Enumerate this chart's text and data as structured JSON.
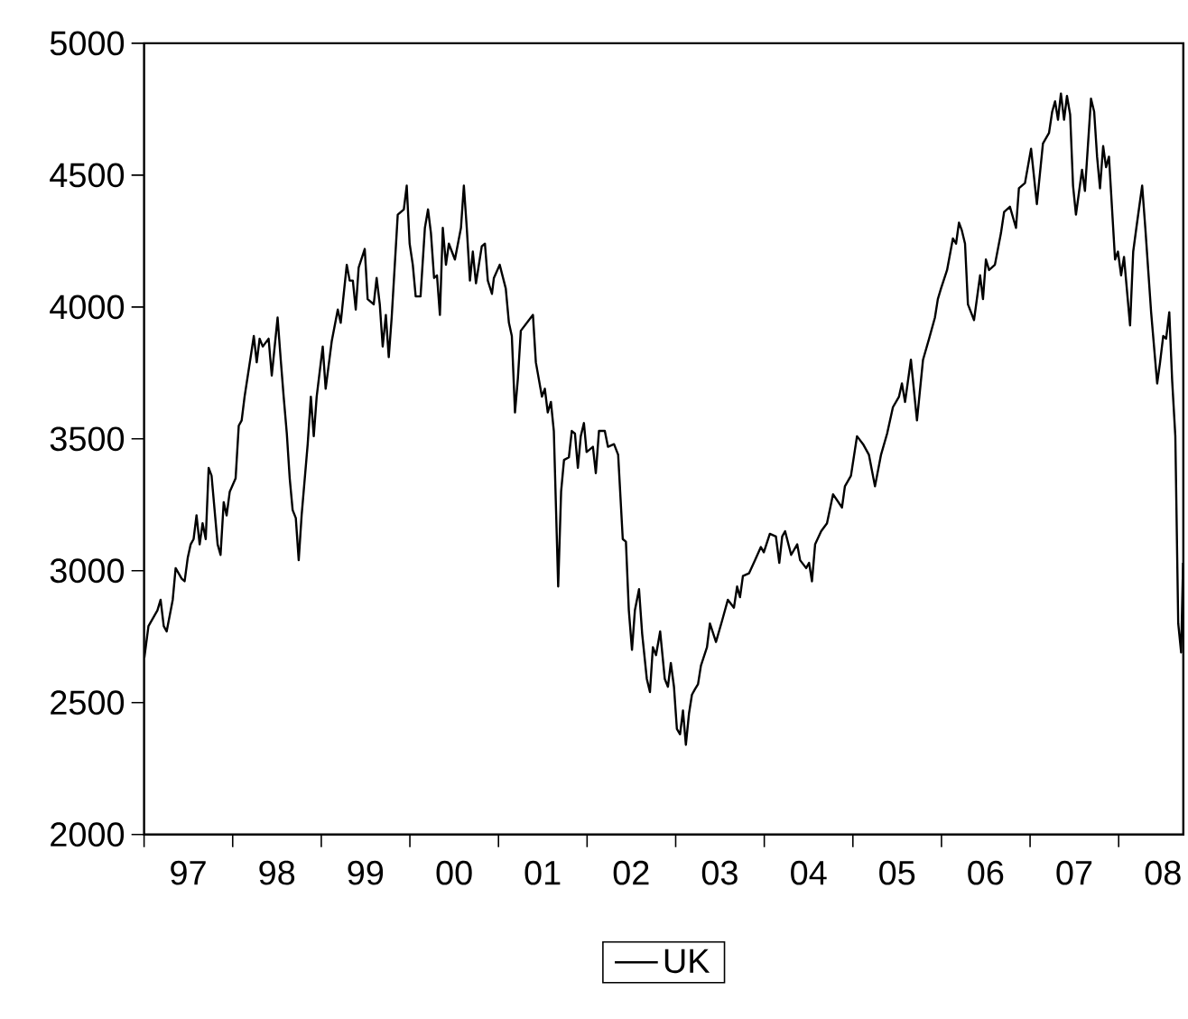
{
  "chart_data": {
    "type": "line",
    "xlim": [
      "1997-01-01",
      "2008-09-24"
    ],
    "ylim": [
      2000,
      5000
    ],
    "yticks": [
      2000,
      2500,
      3000,
      3500,
      4000,
      4500,
      5000
    ],
    "xticks": [
      {
        "value": "1997-01-01",
        "label": null
      },
      {
        "value": "1997-07-02",
        "label": "97"
      },
      {
        "value": "1998-01-01",
        "label": null
      },
      {
        "value": "1998-07-02",
        "label": "98"
      },
      {
        "value": "1999-01-01",
        "label": null
      },
      {
        "value": "1999-07-02",
        "label": "99"
      },
      {
        "value": "2000-01-01",
        "label": null
      },
      {
        "value": "2000-07-02",
        "label": "00"
      },
      {
        "value": "2001-01-01",
        "label": null
      },
      {
        "value": "2001-07-02",
        "label": "01"
      },
      {
        "value": "2002-01-01",
        "label": null
      },
      {
        "value": "2002-07-02",
        "label": "02"
      },
      {
        "value": "2003-01-01",
        "label": null
      },
      {
        "value": "2003-07-02",
        "label": "03"
      },
      {
        "value": "2004-01-01",
        "label": null
      },
      {
        "value": "2004-07-02",
        "label": "04"
      },
      {
        "value": "2005-01-01",
        "label": null
      },
      {
        "value": "2005-07-02",
        "label": "05"
      },
      {
        "value": "2006-01-01",
        "label": null
      },
      {
        "value": "2006-07-02",
        "label": "06"
      },
      {
        "value": "2007-01-01",
        "label": null
      },
      {
        "value": "2007-07-02",
        "label": "07"
      },
      {
        "value": "2008-01-01",
        "label": null
      },
      {
        "value": "2008-07-02",
        "label": "08"
      }
    ],
    "legend": "bottom",
    "line_style": "solid",
    "series": [
      {
        "name": "UK",
        "color": "#000000",
        "x": [
          "1997-01-02",
          "1997-01-19",
          "1997-02-25",
          "1997-03-10",
          "1997-03-23",
          "1997-04-04",
          "1997-04-29",
          "1997-05-11",
          "1997-06-05",
          "1997-06-17",
          "1997-06-30",
          "1997-07-12",
          "1997-07-24",
          "1997-08-05",
          "1997-08-18",
          "1997-08-30",
          "1997-09-12",
          "1997-09-24",
          "1997-10-06",
          "1997-10-31",
          "1997-11-12",
          "1997-11-25",
          "1997-12-07",
          "1997-12-20",
          "1998-01-13",
          "1998-01-26",
          "1998-02-07",
          "1998-02-19",
          "1998-03-16",
          "1998-03-29",
          "1998-04-10",
          "1998-04-22",
          "1998-05-05",
          "1998-05-29",
          "1998-06-11",
          "1998-07-05",
          "1998-07-18",
          "1998-07-30",
          "1998-08-12",
          "1998-08-24",
          "1998-09-05",
          "1998-09-18",
          "1998-09-30",
          "1998-10-12",
          "1998-11-06",
          "1998-11-19",
          "1998-12-01",
          "1998-12-13",
          "1999-01-07",
          "1999-01-19",
          "1999-02-13",
          "1999-03-10",
          "1999-03-22",
          "1999-04-16",
          "1999-04-28",
          "1999-05-11",
          "1999-05-23",
          "1999-06-04",
          "1999-06-29",
          "1999-07-11",
          "1999-08-05",
          "1999-08-17",
          "1999-08-30",
          "1999-09-11",
          "1999-09-24",
          "1999-10-06",
          "1999-10-18",
          "1999-11-12",
          "1999-12-07",
          "1999-12-19",
          "1999-12-31",
          "2000-01-13",
          "2000-01-25",
          "2000-02-14",
          "2000-03-03",
          "2000-03-16",
          "2000-03-28",
          "2000-04-10",
          "2000-04-22",
          "2000-05-04",
          "2000-05-16",
          "2000-05-29",
          "2000-06-10",
          "2000-07-05",
          "2000-07-30",
          "2000-08-11",
          "2000-08-23",
          "2000-09-05",
          "2000-09-17",
          "2000-09-30",
          "2000-10-24",
          "2000-11-06",
          "2000-11-18",
          "2000-12-05",
          "2000-12-13",
          "2001-01-06",
          "2001-01-31",
          "2001-02-13",
          "2001-02-25",
          "2001-03-10",
          "2001-03-22",
          "2001-04-03",
          "2001-04-28",
          "2001-05-23",
          "2001-06-04",
          "2001-06-29",
          "2001-07-11",
          "2001-07-23",
          "2001-08-05",
          "2001-08-17",
          "2001-09-04",
          "2001-09-16",
          "2001-09-28",
          "2001-10-18",
          "2001-10-30",
          "2001-11-12",
          "2001-11-24",
          "2001-12-06",
          "2001-12-19",
          "2001-12-30",
          "2002-01-25",
          "2002-02-06",
          "2002-02-19",
          "2002-03-15",
          "2002-03-28",
          "2002-04-22",
          "2002-05-09",
          "2002-05-28",
          "2002-06-10",
          "2002-06-22",
          "2002-07-05",
          "2002-07-17",
          "2002-08-03",
          "2002-08-16",
          "2002-09-04",
          "2002-09-17",
          "2002-09-29",
          "2002-10-12",
          "2002-10-29",
          "2002-11-17",
          "2002-11-30",
          "2002-12-12",
          "2002-12-25",
          "2003-01-06",
          "2003-01-19",
          "2003-01-31",
          "2003-02-12",
          "2003-02-25",
          "2003-03-09",
          "2003-03-21",
          "2003-04-03",
          "2003-04-15",
          "2003-05-10",
          "2003-05-22",
          "2003-06-16",
          "2003-07-11",
          "2003-08-04",
          "2003-08-29",
          "2003-09-11",
          "2003-09-23",
          "2003-10-05",
          "2003-10-30",
          "2003-11-24",
          "2003-12-18",
          "2003-12-30",
          "2004-01-24",
          "2004-02-18",
          "2004-03-03",
          "2004-03-15",
          "2004-03-27",
          "2004-04-21",
          "2004-05-16",
          "2004-05-28",
          "2004-06-22",
          "2004-07-04",
          "2004-07-16",
          "2004-07-29",
          "2004-08-23",
          "2004-09-16",
          "2004-10-11",
          "2004-11-17",
          "2004-11-29",
          "2004-12-24",
          "2005-01-18",
          "2005-02-12",
          "2005-03-08",
          "2005-04-02",
          "2005-04-27",
          "2005-05-22",
          "2005-06-15",
          "2005-07-10",
          "2005-07-22",
          "2005-08-04",
          "2005-08-28",
          "2005-09-22",
          "2005-10-17",
          "2005-11-11",
          "2005-12-05",
          "2005-12-17",
          "2005-12-30",
          "2006-01-24",
          "2006-02-17",
          "2006-03-02",
          "2006-03-14",
          "2006-03-26",
          "2006-04-08",
          "2006-04-20",
          "2006-05-15",
          "2006-06-09",
          "2006-06-21",
          "2006-07-03",
          "2006-07-16",
          "2006-08-09",
          "2006-09-03",
          "2006-09-16",
          "2006-10-10",
          "2006-11-04",
          "2006-11-16",
          "2006-12-11",
          "2007-01-05",
          "2007-01-29",
          "2007-02-23",
          "2007-03-20",
          "2007-04-02",
          "2007-04-14",
          "2007-04-26",
          "2007-05-08",
          "2007-05-21",
          "2007-06-02",
          "2007-06-15",
          "2007-06-27",
          "2007-07-09",
          "2007-08-03",
          "2007-08-15",
          "2007-09-09",
          "2007-09-22",
          "2007-10-04",
          "2007-10-16",
          "2007-10-29",
          "2007-11-10",
          "2007-11-22",
          "2007-12-17",
          "2007-12-29",
          "2008-01-11",
          "2008-01-23",
          "2008-02-17",
          "2008-03-01",
          "2008-03-14",
          "2008-04-07",
          "2008-04-20",
          "2008-05-14",
          "2008-06-08",
          "2008-06-20",
          "2008-07-03",
          "2008-07-15",
          "2008-07-28",
          "2008-08-09",
          "2008-08-22",
          "2008-09-03",
          "2008-09-15",
          "2008-09-23"
        ],
        "values": [
          2670,
          2790,
          2850,
          2890,
          2790,
          2770,
          2890,
          3010,
          2970,
          2960,
          3050,
          3100,
          3120,
          3210,
          3100,
          3180,
          3120,
          3390,
          3360,
          3100,
          3060,
          3260,
          3210,
          3300,
          3350,
          3550,
          3570,
          3660,
          3810,
          3890,
          3790,
          3880,
          3850,
          3880,
          3740,
          3960,
          3800,
          3660,
          3520,
          3350,
          3230,
          3200,
          3040,
          3210,
          3480,
          3660,
          3510,
          3660,
          3850,
          3690,
          3870,
          3990,
          3940,
          4160,
          4100,
          4100,
          3990,
          4150,
          4220,
          4030,
          4010,
          4110,
          4010,
          3850,
          3970,
          3810,
          3960,
          4350,
          4370,
          4460,
          4240,
          4160,
          4040,
          4040,
          4300,
          4370,
          4280,
          4110,
          4120,
          3970,
          4300,
          4160,
          4240,
          4180,
          4300,
          4460,
          4300,
          4100,
          4210,
          4090,
          4230,
          4240,
          4100,
          4050,
          4110,
          4160,
          4070,
          3940,
          3890,
          3600,
          3730,
          3910,
          3940,
          3970,
          3790,
          3660,
          3690,
          3600,
          3640,
          3530,
          2940,
          3300,
          3420,
          3430,
          3530,
          3520,
          3390,
          3510,
          3560,
          3450,
          3470,
          3370,
          3530,
          3530,
          3470,
          3480,
          3440,
          3120,
          3110,
          2850,
          2700,
          2850,
          2930,
          2760,
          2590,
          2540,
          2710,
          2680,
          2770,
          2590,
          2560,
          2650,
          2560,
          2400,
          2380,
          2470,
          2340,
          2460,
          2530,
          2550,
          2570,
          2640,
          2710,
          2800,
          2730,
          2810,
          2890,
          2860,
          2940,
          2900,
          2980,
          2990,
          3040,
          3090,
          3070,
          3140,
          3130,
          3030,
          3130,
          3150,
          3060,
          3100,
          3040,
          3010,
          3030,
          2960,
          3100,
          3150,
          3180,
          3290,
          3240,
          3320,
          3360,
          3510,
          3480,
          3440,
          3320,
          3440,
          3520,
          3620,
          3660,
          3710,
          3640,
          3800,
          3570,
          3800,
          3880,
          3960,
          4030,
          4070,
          4140,
          4260,
          4240,
          4320,
          4290,
          4240,
          4010,
          3950,
          4120,
          4030,
          4180,
          4140,
          4160,
          4280,
          4360,
          4380,
          4300,
          4450,
          4470,
          4600,
          4390,
          4620,
          4660,
          4740,
          4780,
          4710,
          4810,
          4710,
          4800,
          4730,
          4460,
          4350,
          4520,
          4440,
          4790,
          4740,
          4570,
          4450,
          4610,
          4530,
          4570,
          4180,
          4210,
          4120,
          4190,
          3930,
          4210,
          4300,
          4460,
          4300,
          3980,
          3710,
          3790,
          3890,
          3880,
          3980,
          3720,
          3510,
          2800,
          2690,
          3030
        ]
      }
    ]
  }
}
